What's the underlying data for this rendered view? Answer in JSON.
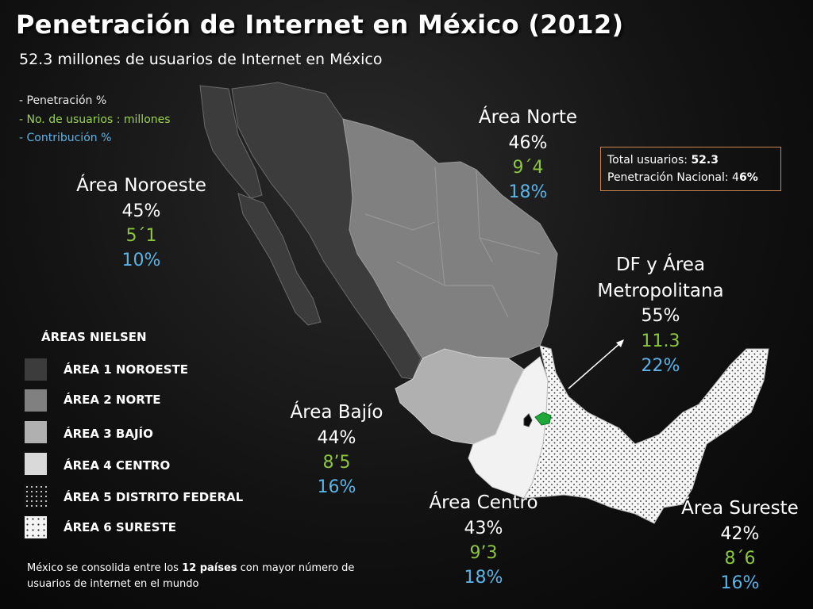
{
  "title": "Penetración de Internet en México (2012)",
  "subtitle": "52.3  millones de usuarios de Internet en México",
  "key": [
    "- Penetración %",
    "- No. de usuarios : millones",
    "- Contribución %"
  ],
  "regions": {
    "norte": {
      "name": "Área Norte",
      "penetration": "46%",
      "users": "9´4",
      "contribution": "18%"
    },
    "noroeste": {
      "name": "Área Noroeste",
      "penetration": "45%",
      "users": "5´1",
      "contribution": "10%"
    },
    "df": {
      "name_line1": "DF y Área",
      "name_line2": "Metropolitana",
      "penetration": "55%",
      "users": "11.3",
      "contribution": "22%"
    },
    "bajio": {
      "name": "Área Bajío",
      "penetration": "44%",
      "users": "8’5",
      "contribution": "16%"
    },
    "centro": {
      "name": "Área Centro",
      "penetration": "43%",
      "users": "9’3",
      "contribution": "18%"
    },
    "sureste": {
      "name": "Área Sureste",
      "penetration": "42%",
      "users": "8´6",
      "contribution": "16%"
    }
  },
  "total_box": {
    "users_label": "Total usuarios: ",
    "users_value": "52.3",
    "penetration_label": "Penetración Nacional: 4",
    "penetration_value": "6%"
  },
  "legend": {
    "title": "ÁREAS NIELSEN",
    "items": [
      {
        "label": "ÁREA 1 NOROESTE",
        "color": "#3c3c3c"
      },
      {
        "label": "ÁREA 2  NORTE",
        "color": "#808080"
      },
      {
        "label": "ÁREA 3 BAJÍO",
        "color": "#b0b0b0"
      },
      {
        "label": "ÁREA 4  CENTRO",
        "color": "#d9d9d9"
      },
      {
        "label": "ÁREA 5  DISTRITO FEDERAL",
        "color": "#000000"
      },
      {
        "label": "ÁREA 6 SURESTE",
        "color": "#f4f4f4"
      }
    ]
  },
  "footer": {
    "pre": "México se consolida entre los ",
    "bold": "12 países",
    "post": " con mayor número de usuarios de internet en el mundo"
  },
  "colors": {
    "noroeste": "#3c3c3c",
    "norte": "#808080",
    "bajio": "#b0b0b0",
    "centro": "#f2f2f2",
    "sureste": "#ffffff",
    "df": "#0a0a0a",
    "edomex_highlight": "#1fa83a",
    "users_green": "#8cc63e",
    "contribution_blue": "#5ab4e6"
  }
}
